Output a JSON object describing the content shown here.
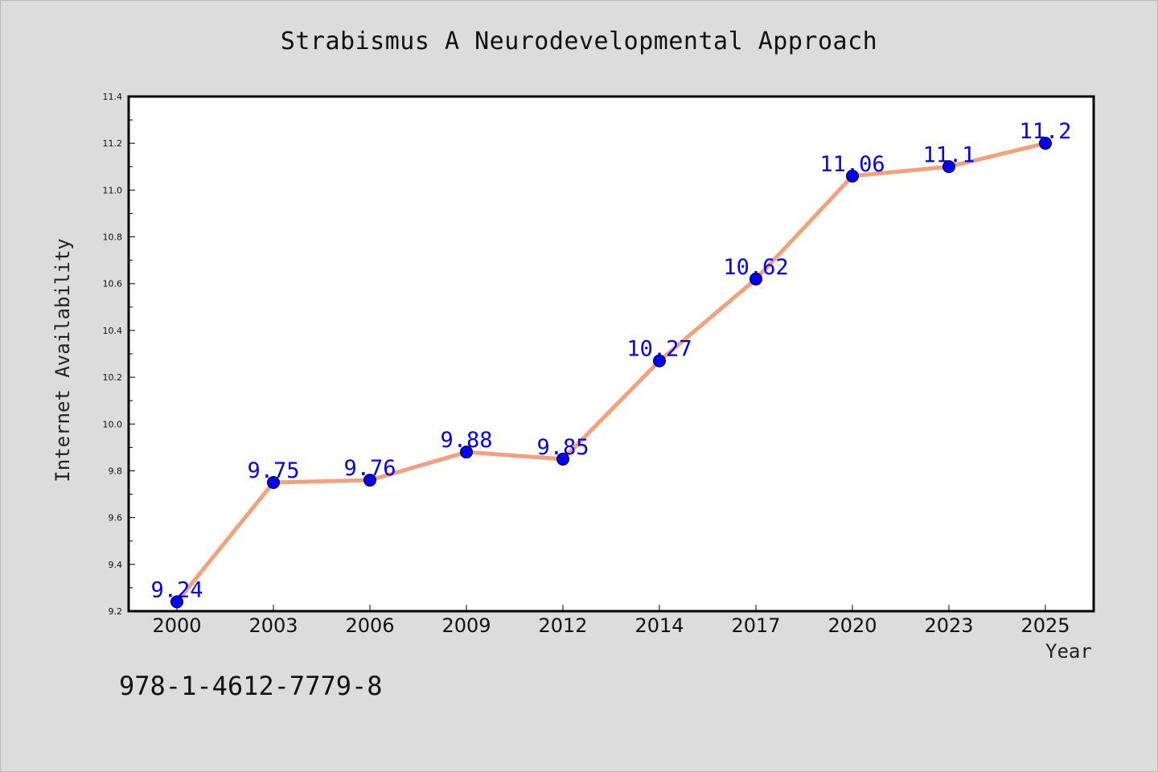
{
  "colors": {
    "background": "#dcdcdc",
    "plot_background": "#ffffff",
    "line": "#f4a07c",
    "marker": "#0000ff",
    "data_label": "#0000ff"
  },
  "footnote": "978-1-4612-7779-8",
  "chart_data": {
    "type": "line",
    "title": "Strabismus A Neurodevelopmental Approach",
    "xlabel": "Year",
    "ylabel": "Internet Availability",
    "categories": [
      "2000",
      "2003",
      "2006",
      "2009",
      "2012",
      "2014",
      "2017",
      "2020",
      "2023",
      "2025"
    ],
    "series": [
      {
        "values": [
          9.24,
          9.75,
          9.76,
          9.88,
          9.85,
          10.27,
          10.62,
          11.06,
          11.1,
          11.2
        ],
        "labels": [
          "9.24",
          "9.75",
          "9.76",
          "9.88",
          "9.85",
          "10.27",
          "10.62",
          "11.06",
          "11.1",
          "11.2"
        ]
      }
    ],
    "ylim": [
      9.2,
      11.4
    ],
    "yticks": [
      "9.2",
      "9.4",
      "9.6",
      "9.8",
      "10.0",
      "10.2",
      "10.4",
      "10.6",
      "10.8",
      "11.0",
      "11.2",
      "11.4"
    ],
    "grid": false,
    "legend": "none"
  }
}
